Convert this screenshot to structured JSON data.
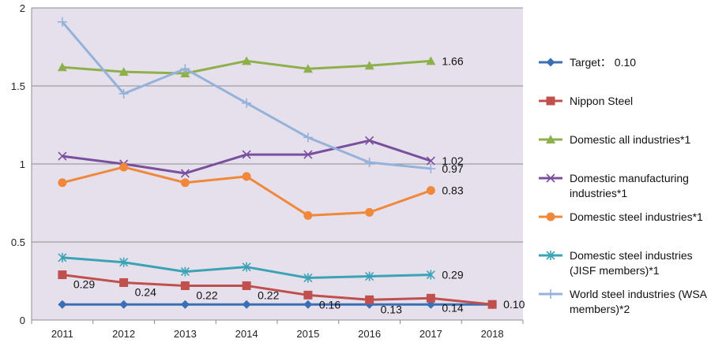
{
  "chart_data": {
    "type": "line",
    "title": "",
    "xlabel": "",
    "ylabel": "",
    "ylim": [
      0,
      2
    ],
    "yticks": [
      0,
      0.5,
      1,
      1.5,
      2
    ],
    "ytick_labels": [
      "0",
      "0.5",
      "1",
      "1.5",
      "2"
    ],
    "categories": [
      "2011",
      "2012",
      "2013",
      "2014",
      "2015",
      "2016",
      "2017",
      "2018"
    ],
    "legend_position": "right",
    "plot_background": "#E6E0EC",
    "series": [
      {
        "name": "Target： 0.10",
        "color": "#3A6FB5",
        "marker": "diamond",
        "values": [
          0.1,
          0.1,
          0.1,
          0.1,
          0.1,
          0.1,
          0.1,
          0.1
        ],
        "labels": [
          null,
          null,
          null,
          null,
          null,
          null,
          null,
          null
        ]
      },
      {
        "name": "Nippon Steel",
        "color": "#C0504D",
        "marker": "square",
        "values": [
          0.29,
          0.24,
          0.22,
          0.22,
          0.16,
          0.13,
          0.14,
          0.1
        ],
        "labels": [
          "0.29",
          "0.24",
          "0.22",
          "0.22",
          "0.16",
          "0.13",
          "0.14",
          "0.10"
        ]
      },
      {
        "name": "Domestic all industries*1",
        "color": "#8DB04A",
        "marker": "triangle",
        "values": [
          1.62,
          1.59,
          1.58,
          1.66,
          1.61,
          1.63,
          1.66,
          null
        ],
        "labels": [
          null,
          null,
          null,
          null,
          null,
          null,
          "1.66",
          null
        ]
      },
      {
        "name": "Domestic manufacturing industries*1",
        "color": "#7A4F9E",
        "marker": "x",
        "values": [
          1.05,
          1.0,
          0.94,
          1.06,
          1.06,
          1.15,
          1.02,
          null
        ],
        "labels": [
          null,
          null,
          null,
          null,
          null,
          null,
          "1.02",
          null
        ]
      },
      {
        "name": "Domestic steel industries*1",
        "color": "#F0883C",
        "marker": "circle",
        "values": [
          0.88,
          0.98,
          0.88,
          0.92,
          0.67,
          0.69,
          0.83,
          null
        ],
        "labels": [
          null,
          null,
          null,
          null,
          null,
          null,
          "0.83",
          null
        ]
      },
      {
        "name": "Domestic steel industries (JISF members)*1",
        "color": "#3BA3B5",
        "marker": "star",
        "values": [
          0.4,
          0.37,
          0.31,
          0.34,
          0.27,
          0.28,
          0.29,
          null
        ],
        "labels": [
          null,
          null,
          null,
          null,
          null,
          null,
          "0.29",
          null
        ]
      },
      {
        "name": "World steel industries (WSA members)*2",
        "color": "#94B2DA",
        "marker": "plus",
        "values": [
          1.91,
          1.45,
          1.61,
          1.39,
          1.17,
          1.01,
          0.97,
          null
        ],
        "labels": [
          null,
          null,
          null,
          null,
          null,
          null,
          "0.97",
          null
        ]
      }
    ]
  },
  "legend": {
    "entries": [
      [
        "Target： 0.10"
      ],
      [
        "Nippon Steel"
      ],
      [
        "Domestic all industries*1"
      ],
      [
        "Domestic manufacturing",
        "industries*1"
      ],
      [
        "Domestic steel industries*1"
      ],
      [
        "Domestic steel industries",
        "(JISF members)*1"
      ],
      [
        "World steel industries (WSA",
        "members)*2"
      ]
    ]
  }
}
